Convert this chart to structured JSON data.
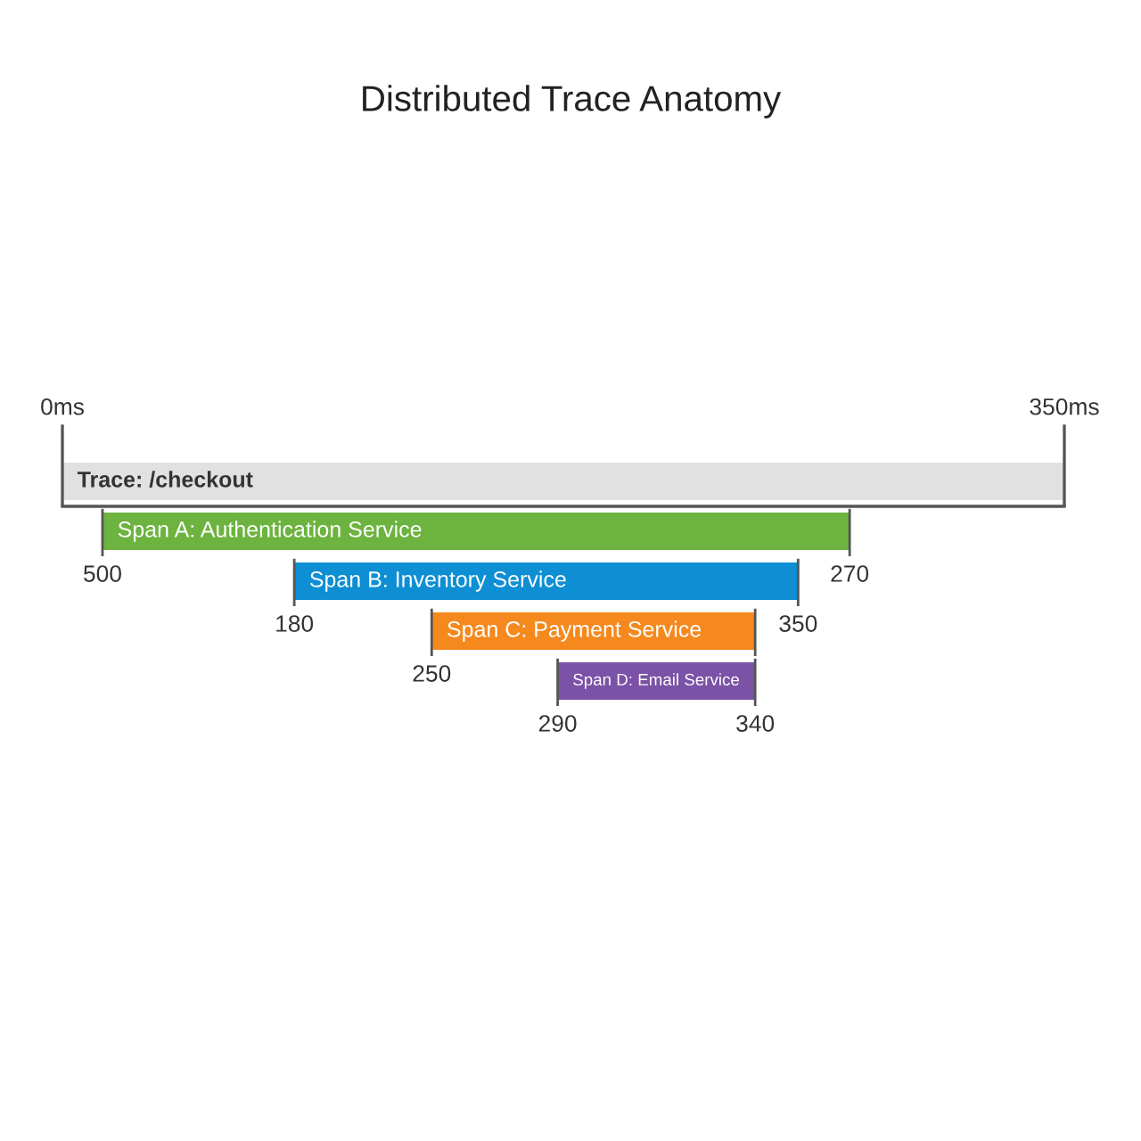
{
  "chart_data": {
    "type": "bar",
    "orientation": "horizontal",
    "title": "Distributed Trace Anatomy",
    "categories": [
      "Trace: /checkout",
      "Span A: Authentication Service",
      "Span B: Inventory Service",
      "Span C: Payment Service",
      "Span D: Email Service"
    ],
    "base": [
      0,
      14,
      81,
      129,
      173
    ],
    "values": [
      350,
      261,
      176,
      113,
      69
    ],
    "colors": [
      "#e1e1e1",
      "#6db33f",
      "#0e8fd4",
      "#f5891e",
      "#7b52a6"
    ],
    "xlim": [
      0,
      350
    ],
    "xticks": [
      {
        "value": 0,
        "label": "0ms"
      },
      {
        "value": 350,
        "label": "350ms"
      }
    ],
    "annotations": [
      {
        "text": "500",
        "x": 14,
        "y": "Span A: Authentication Service"
      },
      {
        "text": "270",
        "x": 275,
        "y": "Span A: Authentication Service"
      },
      {
        "text": "180",
        "x": 81,
        "y": "Span B: Inventory Service"
      },
      {
        "text": "350",
        "x": 257,
        "y": "Span B: Inventory Service"
      },
      {
        "text": "250",
        "x": 129,
        "y": "Span C: Payment Service"
      },
      {
        "text": "290",
        "x": 173,
        "y": "Span D: Email Service"
      },
      {
        "text": "340",
        "x": 242,
        "y": "Span D: Email Service"
      }
    ]
  }
}
